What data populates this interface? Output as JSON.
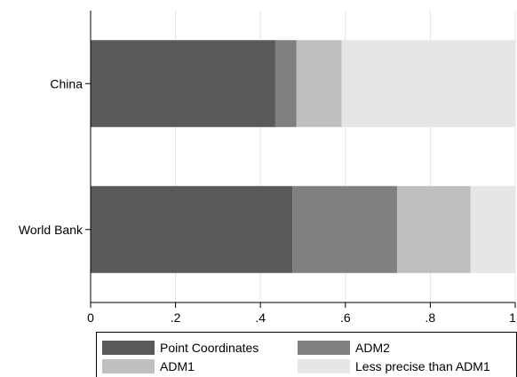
{
  "chart_data": {
    "type": "bar",
    "orientation": "horizontal",
    "stacked": true,
    "categories": [
      "China",
      "World Bank"
    ],
    "series": [
      {
        "name": "Point Coordinates",
        "color": "#595959",
        "values": [
          0.435,
          0.475
        ]
      },
      {
        "name": "ADM2",
        "color": "#808080",
        "values": [
          0.05,
          0.247
        ]
      },
      {
        "name": "ADM1",
        "color": "#bfbfbf",
        "values": [
          0.106,
          0.173
        ]
      },
      {
        "name": "Less precise than ADM1",
        "color": "#e6e6e6",
        "values": [
          0.409,
          0.105
        ]
      }
    ],
    "xlim": [
      0,
      1
    ],
    "x_ticks": [
      {
        "value": 0,
        "label": "0"
      },
      {
        "value": 0.2,
        "label": ".2"
      },
      {
        "value": 0.4,
        "label": ".4"
      },
      {
        "value": 0.6,
        "label": ".6"
      },
      {
        "value": 0.8,
        "label": ".8"
      },
      {
        "value": 1,
        "label": "1"
      }
    ],
    "grid": true,
    "legend_position": "bottom",
    "title": "",
    "xlabel": "",
    "ylabel": ""
  }
}
